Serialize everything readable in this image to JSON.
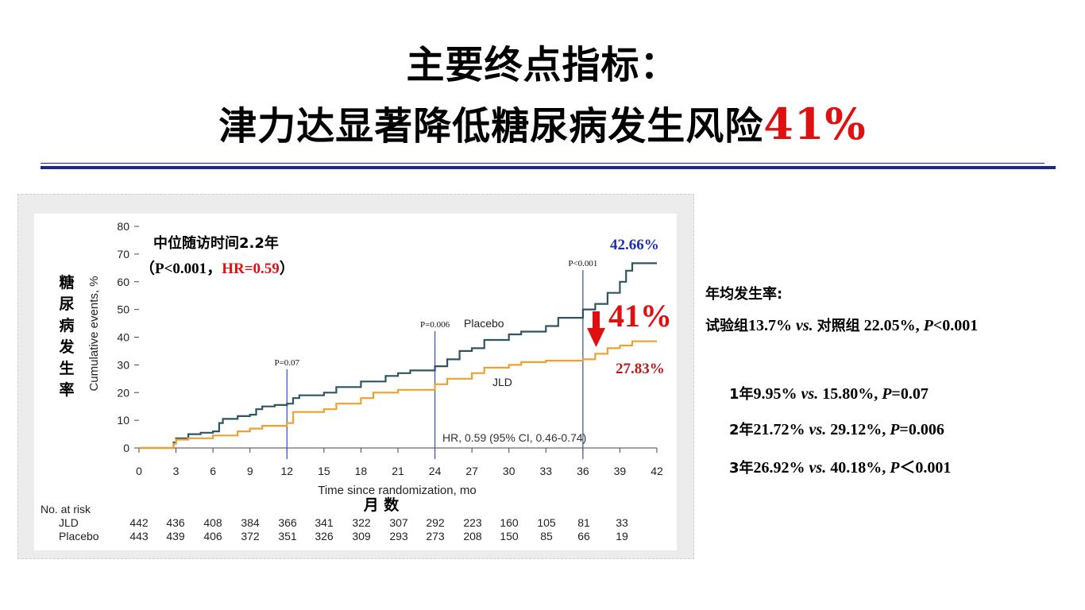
{
  "slide": {
    "title_line1": "主要终点指标：",
    "title_line2_text": "津力达显著降低糖尿病发生风险",
    "title_line2_pct": "41%"
  },
  "colors": {
    "placebo": "#2e5560",
    "jld": "#f0a030",
    "accent_red": "#e01010",
    "blue": "#1a2fb0",
    "rule": "#1a2a8a"
  },
  "chart_data": {
    "type": "line",
    "xlabel": "Time since randomization, mo",
    "xlabel_cn": "月 数",
    "ylabel": "Cumulative events, %",
    "ylabel_cn": "糖尿病发生率",
    "xlim": [
      0,
      42
    ],
    "ylim": [
      0,
      80
    ],
    "xticks": [
      0,
      3,
      6,
      9,
      12,
      15,
      18,
      21,
      24,
      27,
      30,
      33,
      36,
      39,
      42
    ],
    "yticks": [
      0,
      10,
      20,
      30,
      40,
      50,
      60,
      70,
      80
    ],
    "series": [
      {
        "name": "Placebo",
        "color": "#2e5560",
        "x": [
          0,
          2.8,
          3,
          4,
          5,
          6,
          6.5,
          6.8,
          8,
          9,
          9.5,
          10,
          11,
          12,
          12.5,
          13,
          15,
          16,
          18,
          20,
          21,
          22,
          24,
          25,
          26,
          27,
          28,
          30,
          31,
          33,
          34,
          36,
          37,
          38,
          39,
          39.5,
          40,
          42
        ],
        "y": [
          0,
          2,
          3.5,
          5,
          5.5,
          6,
          9,
          10.5,
          11.5,
          12,
          14,
          15,
          15.5,
          16,
          18,
          19,
          20,
          22,
          24,
          26,
          27,
          28,
          29.5,
          32,
          35,
          36,
          39,
          41,
          42,
          44,
          47,
          50,
          52,
          56,
          60,
          64,
          66.7,
          66.7
        ]
      },
      {
        "name": "JLD",
        "color": "#f0a030",
        "x": [
          0,
          2.8,
          3,
          4,
          6,
          8,
          9,
          10,
          12,
          12.5,
          15,
          16,
          18,
          19,
          21,
          24,
          25,
          27,
          28,
          30,
          31,
          33,
          36,
          37,
          38,
          39,
          40,
          42
        ],
        "y": [
          0,
          1.5,
          3,
          3.5,
          4.5,
          6,
          7,
          8,
          9,
          13,
          14,
          16,
          18,
          20,
          21,
          23,
          25,
          27,
          29,
          30,
          31,
          31.5,
          32,
          34,
          36,
          37,
          38.5,
          38.5
        ]
      }
    ],
    "vlines": [
      {
        "x": 12,
        "label": "P=0.07"
      },
      {
        "x": 24,
        "label": "P=0.006"
      },
      {
        "x": 36,
        "label": "P<0.001"
      }
    ],
    "annotations": {
      "median_followup": "中位随访时间2.2年",
      "stats_open": "（P<0.001，",
      "hr": "HR=0.59",
      "stats_close": "）",
      "placebo_end_pct": "42.66%",
      "jld_end_pct": "27.83%",
      "reduction_pct": "41%",
      "placebo_label": "Placebo",
      "jld_label": "JLD",
      "hr_ci": "HR, 0.59 (95% CI, 0.46-0.74)"
    },
    "risk_table": {
      "header": "No. at risk",
      "rows": [
        {
          "name": "JLD",
          "values": [
            "442",
            "436",
            "408",
            "384",
            "366",
            "341",
            "322",
            "307",
            "292",
            "223",
            "160",
            "105",
            "81",
            "33"
          ]
        },
        {
          "name": "Placebo",
          "values": [
            "443",
            "439",
            "406",
            "372",
            "351",
            "326",
            "309",
            "293",
            "273",
            "208",
            "150",
            "85",
            "66",
            "19"
          ]
        }
      ]
    }
  },
  "stats": {
    "annual_title": "年均发生率:",
    "annual_line": {
      "a_cn": "试验组",
      "a_val": "13.7%",
      "vs": "vs.",
      "b_cn": "对照组",
      "b_val": "22.05%,",
      "p": "P",
      "p_val": "<0.001"
    },
    "yearly": [
      {
        "yr": "1年",
        "a": "9.95%",
        "vs": "vs.",
        "b": "15.80%,",
        "p": "P",
        "p_val": "=0.07"
      },
      {
        "yr": "2年",
        "a": "21.72%",
        "vs": "vs.",
        "b": "29.12%,",
        "p": "P",
        "p_val": "=0.006"
      },
      {
        "yr": "3年",
        "a": "26.92%",
        "vs": "vs.",
        "b": "40.18%,",
        "p": "P",
        "p_val": "＜0.001"
      }
    ]
  }
}
